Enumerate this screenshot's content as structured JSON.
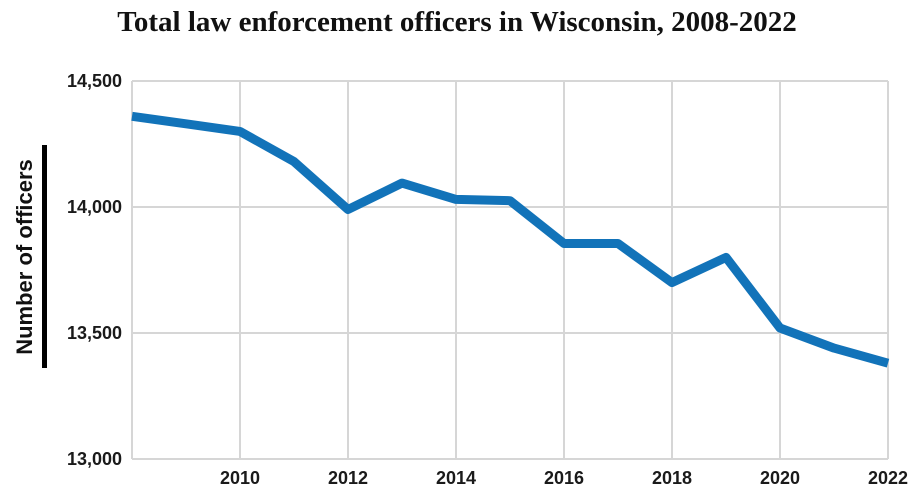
{
  "chart_data": {
    "type": "line",
    "title": "Total law enforcement officers in Wisconsin, 2008-2022",
    "xlabel": "",
    "ylabel": "Number of officers",
    "x": [
      2008,
      2009,
      2010,
      2011,
      2012,
      2013,
      2014,
      2015,
      2016,
      2017,
      2018,
      2019,
      2020,
      2021,
      2022
    ],
    "series": [
      {
        "name": "Total law enforcement officers",
        "values": [
          14360,
          14330,
          14300,
          14180,
          13990,
          14095,
          14030,
          14025,
          13855,
          13855,
          13700,
          13800,
          13520,
          13440,
          13380
        ]
      }
    ],
    "xlim": [
      2008,
      2022
    ],
    "ylim": [
      13000,
      14500
    ],
    "xticks": [
      {
        "value": 2010,
        "label": "2010"
      },
      {
        "value": 2012,
        "label": "2012"
      },
      {
        "value": 2014,
        "label": "2014"
      },
      {
        "value": 2016,
        "label": "2016"
      },
      {
        "value": 2018,
        "label": "2018"
      },
      {
        "value": 2020,
        "label": "2020"
      },
      {
        "value": 2022,
        "label": "2022"
      }
    ],
    "yticks": [
      {
        "value": 13000,
        "label": "13,000"
      },
      {
        "value": 13500,
        "label": "13,500"
      },
      {
        "value": 14000,
        "label": "14,000"
      },
      {
        "value": 14500,
        "label": "14,500"
      }
    ],
    "grid": true,
    "legend_position": "none",
    "colors": {
      "line": "#1273b9",
      "grid": "#d6d6d6",
      "text": "#1a1a1a",
      "ylabel_bar": "#000000",
      "background": "#ffffff"
    }
  }
}
